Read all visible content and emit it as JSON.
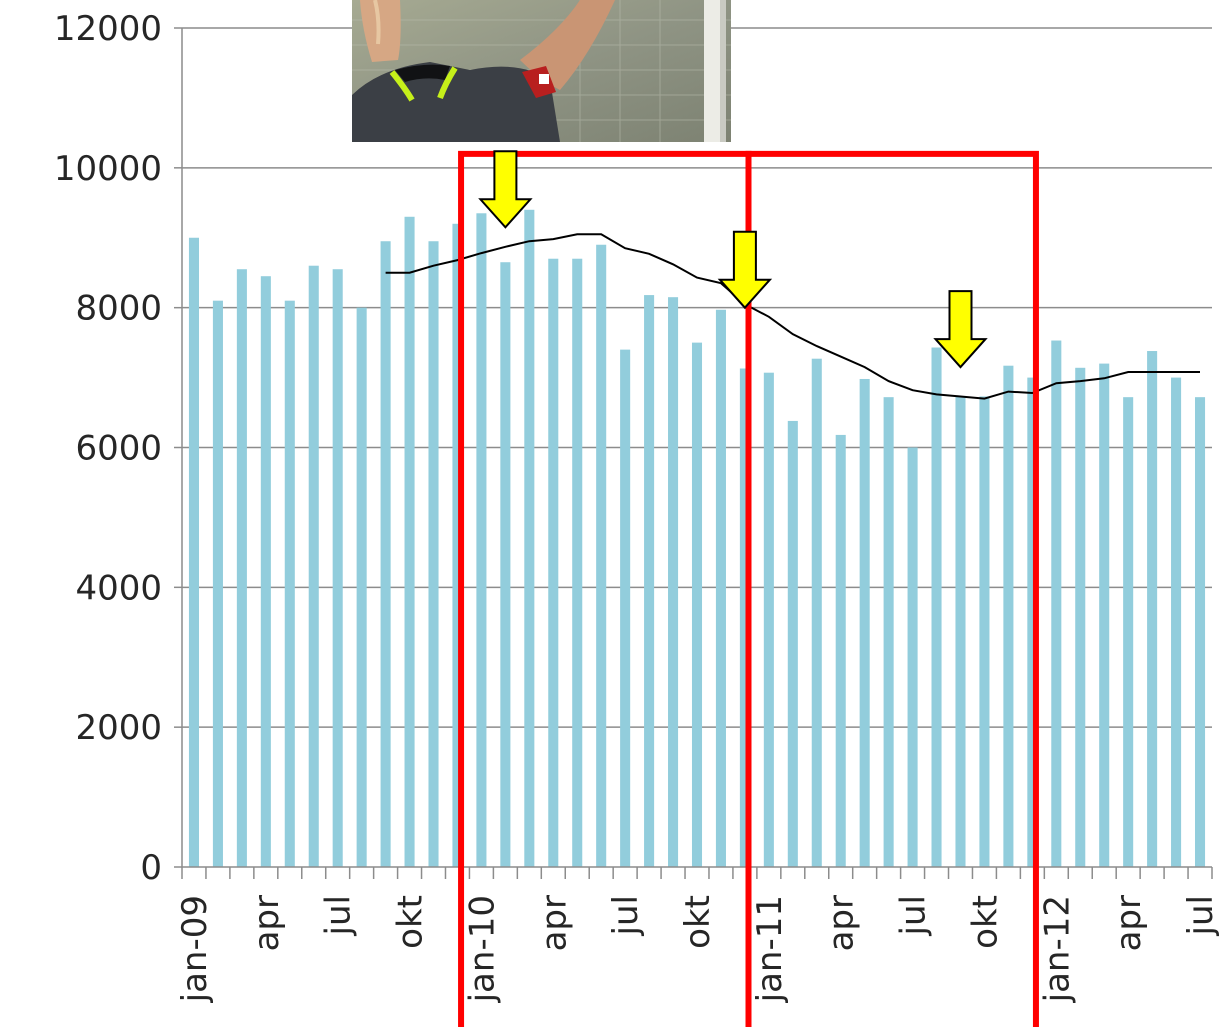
{
  "chart_data": {
    "type": "bar",
    "title": "",
    "xlabel": "",
    "ylabel": "",
    "ylim": [
      0,
      12000
    ],
    "y_ticks": [
      "0",
      "2000",
      "4000",
      "6000",
      "8000",
      "10000",
      "12000"
    ],
    "grid": true,
    "bar_color": "#92cddc",
    "line_color": "#000000",
    "highlight_color": "#ff0000",
    "arrow_color": "#ffff00",
    "categories": [
      "jan-09",
      "feb-09",
      "mar-09",
      "apr-09",
      "maj-09",
      "jun-09",
      "jul-09",
      "aug-09",
      "sep-09",
      "okt-09",
      "nov-09",
      "dec-09",
      "jan-10",
      "feb-10",
      "mar-10",
      "apr-10",
      "maj-10",
      "jun-10",
      "jul-10",
      "aug-10",
      "sep-10",
      "okt-10",
      "nov-10",
      "dec-10",
      "jan-11",
      "feb-11",
      "mar-11",
      "apr-11",
      "maj-11",
      "jun-11",
      "jul-11",
      "aug-11",
      "sep-11",
      "okt-11",
      "nov-11",
      "dec-11",
      "jan-12",
      "feb-12",
      "mar-12",
      "apr-12",
      "maj-12",
      "jun-12",
      "jul-12"
    ],
    "tick_labels": [
      "jan-09",
      "",
      "",
      "apr",
      "",
      "",
      "jul",
      "",
      "",
      "okt",
      "",
      "",
      "jan-10",
      "",
      "",
      "apr",
      "",
      "",
      "jul",
      "",
      "",
      "okt",
      "",
      "",
      "jan-11",
      "",
      "",
      "apr",
      "",
      "",
      "jul",
      "",
      "",
      "okt",
      "",
      "",
      "jan-12",
      "",
      "",
      "apr",
      "",
      "",
      "jul"
    ],
    "series": [
      {
        "type": "bar",
        "values": [
          9000,
          8100,
          8550,
          8450,
          8100,
          8600,
          8550,
          8000,
          8950,
          9300,
          8950,
          9200,
          9350,
          8650,
          9400,
          8700,
          8700,
          8900,
          7400,
          8180,
          8150,
          7500,
          7970,
          7130,
          7070,
          6380,
          7270,
          6180,
          6980,
          6720,
          6000,
          7430,
          6730,
          6730,
          7170,
          7000,
          7530,
          7140,
          7200,
          6720,
          7380,
          7000,
          6720
        ]
      },
      {
        "type": "line",
        "values": [
          null,
          null,
          null,
          null,
          null,
          null,
          null,
          null,
          8500,
          8500,
          8600,
          8680,
          8780,
          8870,
          8950,
          8980,
          9050,
          9050,
          8850,
          8770,
          8620,
          8430,
          8350,
          8050,
          7870,
          7620,
          7450,
          7300,
          7150,
          6950,
          6820,
          6760,
          6730,
          6700,
          6800,
          6780,
          6920,
          6950,
          6990,
          7080,
          7080,
          7080,
          7080
        ]
      }
    ],
    "photo": "referee-photo",
    "highlight_boxes": [
      {
        "from": "dec-09",
        "to": "dec-10"
      },
      {
        "from": "dec-10",
        "to": "dec-11"
      }
    ],
    "arrows": [
      {
        "at": "feb-10",
        "value": 9150
      },
      {
        "at": "dec-10",
        "value": 8000
      },
      {
        "at": "sep-11",
        "value": 7150
      }
    ]
  }
}
